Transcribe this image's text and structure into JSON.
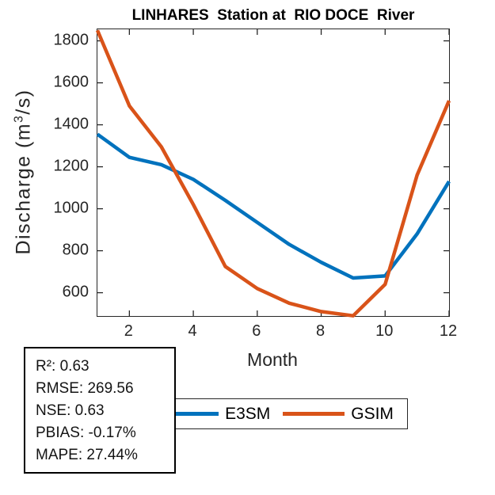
{
  "figure": {
    "title": "LINHARES  Station at  RIO DOCE  River",
    "xlabel": "Month",
    "ylabel": {
      "prefix": "Discharge (m",
      "sup": "3",
      "suffix": "/s)"
    }
  },
  "chart_data": {
    "type": "line",
    "title": "LINHARES Station at RIO DOCE River",
    "xlabel": "Month",
    "ylabel": "Discharge (m^3/s)",
    "x": [
      1,
      2,
      3,
      4,
      5,
      6,
      7,
      8,
      9,
      10,
      11,
      12
    ],
    "x_ticks": [
      2,
      4,
      6,
      8,
      10,
      12
    ],
    "y_ticks": [
      600,
      800,
      1000,
      1200,
      1400,
      1600,
      1800
    ],
    "xlim": [
      1,
      12
    ],
    "ylim": [
      489,
      1855
    ],
    "grid": false,
    "legend_position": "below-horizontal",
    "series": [
      {
        "name": "E3SM",
        "color": "#0072BD",
        "values": [
          1355,
          1245,
          1210,
          1140,
          1040,
          935,
          830,
          745,
          670,
          680,
          880,
          1130
        ]
      },
      {
        "name": "GSIM",
        "color": "#D95319",
        "values": [
          1850,
          1490,
          1295,
          1020,
          725,
          620,
          550,
          510,
          490,
          640,
          1160,
          1515
        ]
      }
    ]
  },
  "legend": {
    "items": [
      {
        "label": "E3SM",
        "color": "#0072BD"
      },
      {
        "label": "GSIM",
        "color": "#D95319"
      }
    ]
  },
  "stats_box": {
    "r2": "R²: 0.63",
    "rmse": "RMSE: 269.56",
    "nse": "NSE: 0.63",
    "pbias": "PBIAS: -0.17%",
    "mape": "MAPE: 27.44%"
  },
  "colors": {
    "axis": "#262626",
    "background": "#ffffff",
    "e3sm_line": "#0072BD",
    "gsim_line": "#D95319"
  }
}
